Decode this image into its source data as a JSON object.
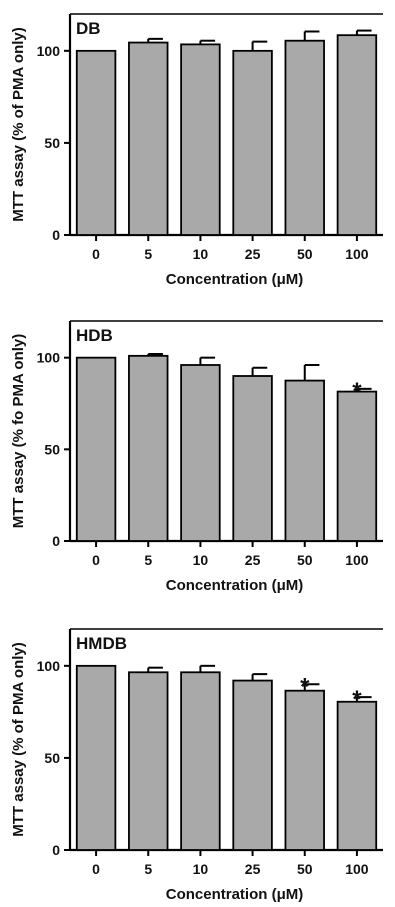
{
  "chart_data": [
    {
      "type": "bar",
      "panel_label": "DB",
      "categories": [
        "0",
        "5",
        "10",
        "25",
        "50",
        "100"
      ],
      "values": [
        100,
        104.5,
        103.5,
        100,
        105.5,
        108.5
      ],
      "errors": [
        0,
        2,
        2,
        5,
        5,
        2.5
      ],
      "significant": [
        false,
        false,
        false,
        false,
        false,
        false
      ],
      "xlabel": "Concentration (μM)",
      "ylabel": "MTT assay (% of PMA only)",
      "ylim": [
        0,
        120
      ],
      "yticks": [
        "0",
        "50",
        "100"
      ],
      "bar_color": "#a9a9a9",
      "grid": false
    },
    {
      "type": "bar",
      "panel_label": "HDB",
      "categories": [
        "0",
        "5",
        "10",
        "25",
        "50",
        "100"
      ],
      "values": [
        100,
        101,
        96,
        90,
        87.5,
        81.5
      ],
      "errors": [
        0,
        1,
        4,
        4.5,
        8.5,
        1.5
      ],
      "significant": [
        false,
        false,
        false,
        false,
        false,
        true
      ],
      "xlabel": "Concentration (μM)",
      "ylabel": "MTT assay (% fo PMA only)",
      "ylim": [
        0,
        120
      ],
      "yticks": [
        "0",
        "50",
        "100"
      ],
      "bar_color": "#a9a9a9",
      "grid": false
    },
    {
      "type": "bar",
      "panel_label": "HMDB",
      "categories": [
        "0",
        "5",
        "10",
        "25",
        "50",
        "100"
      ],
      "values": [
        100,
        96.5,
        96.5,
        92,
        86.5,
        80.5
      ],
      "errors": [
        0,
        2.5,
        3.5,
        3.5,
        3.5,
        2.5
      ],
      "significant": [
        false,
        false,
        false,
        false,
        true,
        true
      ],
      "xlabel": "Concentration (μM)",
      "ylabel": "MTT assay (% of PMA only)",
      "ylim": [
        0,
        120
      ],
      "yticks": [
        "0",
        "50",
        "100"
      ],
      "bar_color": "#a9a9a9",
      "grid": false
    }
  ],
  "significance_marker": "*"
}
